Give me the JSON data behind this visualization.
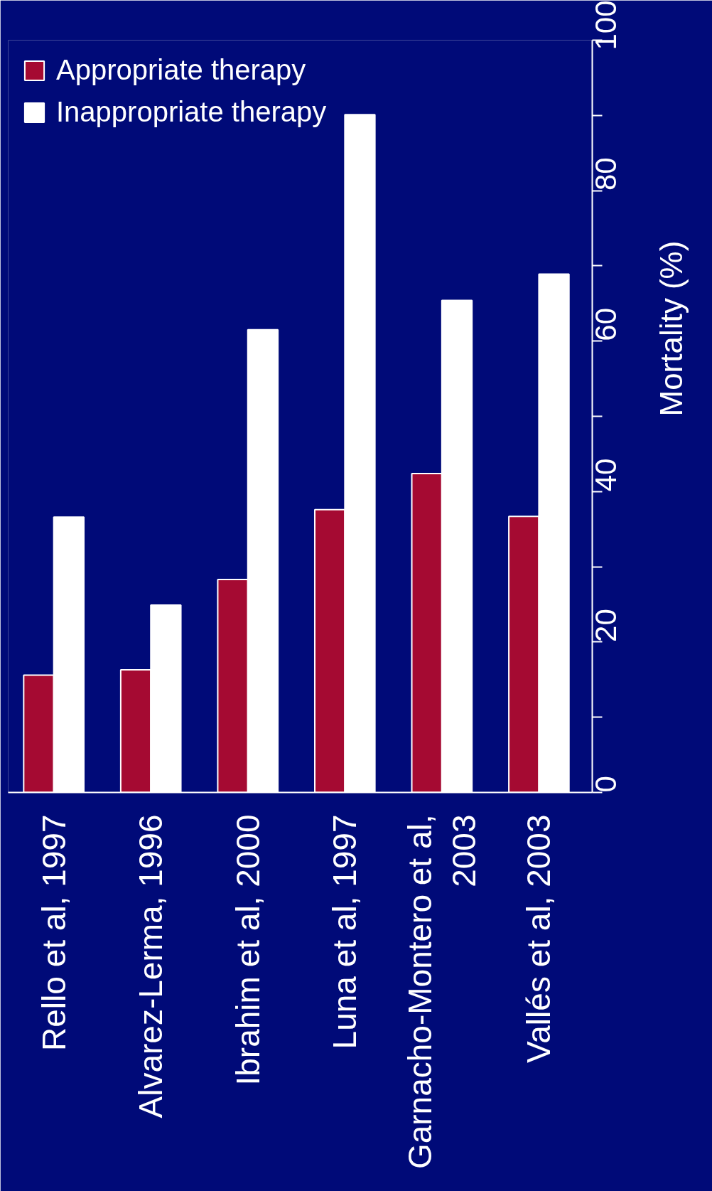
{
  "chart_data": {
    "type": "bar",
    "ylabel": "Mortality (%)",
    "categories": [
      "Rello et al, 1997",
      "Alvarez-Lerma, 1996",
      "Ibrahim et al, 2000",
      "Luna et al, 1997",
      "Garnacho-Montero et al,\n2003",
      "Vallés et al, 2003"
    ],
    "series": [
      {
        "name": "Appropriate therapy",
        "color": "#a50a32",
        "values": [
          15.6,
          16.3,
          28.3,
          37.6,
          42.4,
          36.7
        ]
      },
      {
        "name": "Inappropriate therapy",
        "color": "#ffffff",
        "values": [
          36.6,
          24.9,
          61.5,
          90.1,
          65.4,
          68.9
        ]
      }
    ],
    "ylim": [
      0,
      100
    ],
    "yticks": [
      0,
      {
        "value": 10,
        "label": null
      },
      20,
      {
        "value": 30,
        "label": null
      },
      40,
      {
        "value": 50,
        "label": null
      },
      60,
      {
        "value": 70,
        "label": null
      },
      80,
      {
        "value": 90,
        "label": null
      },
      100
    ],
    "grid": false,
    "legend": "top left"
  }
}
